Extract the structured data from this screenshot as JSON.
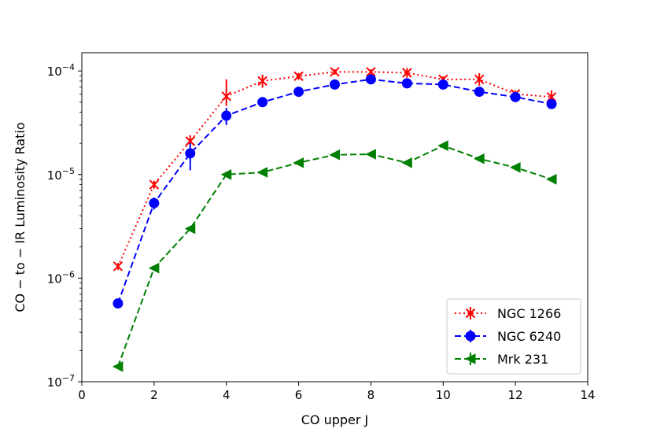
{
  "chart_data": {
    "type": "line",
    "title": "",
    "xlabel": "CO upper J",
    "ylabel": "CO − to − IR Luminosity Ratio",
    "xlim": [
      0,
      14
    ],
    "ylim": [
      1e-07,
      0.00015
    ],
    "yscale": "log",
    "x_ticks": [
      "0",
      "2",
      "4",
      "6",
      "8",
      "10",
      "12",
      "14"
    ],
    "y_ticks": [
      {
        "base": "10",
        "exp": "−7"
      },
      {
        "base": "10",
        "exp": "−6"
      },
      {
        "base": "10",
        "exp": "−5"
      },
      {
        "base": "10",
        "exp": "−4"
      }
    ],
    "grid": false,
    "legend_position": "lower-right",
    "series": [
      {
        "name": "NGC 1266",
        "color": "#ff0000",
        "marker": "x",
        "linestyle": "dotted",
        "x": [
          1,
          2,
          3,
          4,
          5,
          6,
          7,
          8,
          9,
          10,
          11,
          12,
          13
        ],
        "y": [
          1.3e-06,
          8e-06,
          2.1e-05,
          5.7e-05,
          8e-05,
          8.9e-05,
          9.8e-05,
          9.8e-05,
          9.6e-05,
          8.3e-05,
          8.3e-05,
          6e-05,
          5.6e-05
        ],
        "yerr_lo": [
          1.2e-06,
          7.3e-06,
          1.85e-05,
          4.6e-05,
          6.9e-05,
          8.2e-05,
          9.2e-05,
          9.2e-05,
          8.6e-05,
          7.7e-05,
          7.2e-05,
          5.5e-05,
          4.8e-05
        ],
        "yerr_hi": [
          1.4e-06,
          8.7e-06,
          2.4e-05,
          8.3e-05,
          9.2e-05,
          9.6e-05,
          0.000104,
          0.000104,
          0.000107,
          8.9e-05,
          9.5e-05,
          6.5e-05,
          6.5e-05
        ]
      },
      {
        "name": "NGC 6240",
        "color": "#0000ff",
        "marker": "o",
        "linestyle": "dashed",
        "x": [
          1,
          2,
          3,
          4,
          5,
          6,
          7,
          8,
          9,
          10,
          11,
          12,
          13
        ],
        "y": [
          5.7e-07,
          5.3e-06,
          1.6e-05,
          3.7e-05,
          5e-05,
          6.3e-05,
          7.4e-05,
          8.3e-05,
          7.6e-05,
          7.4e-05,
          6.3e-05,
          5.6e-05,
          4.8e-05
        ],
        "yerr_lo": [
          5.3e-07,
          4.6e-06,
          1.1e-05,
          3e-05,
          4.7e-05,
          6e-05,
          7e-05,
          7.9e-05,
          7.2e-05,
          7e-05,
          5.9e-05,
          5.2e-05,
          4.4e-05
        ],
        "yerr_hi": [
          6.1e-07,
          6e-06,
          2e-05,
          4.4e-05,
          5.3e-05,
          6.6e-05,
          7.8e-05,
          8.8e-05,
          8e-05,
          7.8e-05,
          6.7e-05,
          6e-05,
          5.2e-05
        ]
      },
      {
        "name": "Mrk 231",
        "color": "#008000",
        "marker": "<",
        "linestyle": "dashed",
        "x": [
          1,
          2,
          3,
          4,
          5,
          6,
          7,
          8,
          9,
          10,
          11,
          12,
          13
        ],
        "y": [
          1.4e-07,
          1.25e-06,
          3e-06,
          1e-05,
          1.05e-05,
          1.3e-05,
          1.55e-05,
          1.57e-05,
          1.3e-05,
          1.9e-05,
          1.42e-05,
          1.17e-05,
          9e-06
        ],
        "yerr_lo": [
          1.35e-07,
          1.2e-06,
          2.9e-06,
          9.7e-06,
          1.02e-05,
          1.27e-05,
          1.52e-05,
          1.54e-05,
          1.27e-05,
          1.86e-05,
          1.39e-05,
          1.14e-05,
          8.8e-06
        ],
        "yerr_hi": [
          1.45e-07,
          1.3e-06,
          3.1e-06,
          1.03e-05,
          1.08e-05,
          1.33e-05,
          1.58e-05,
          1.6e-05,
          1.33e-05,
          1.94e-05,
          1.45e-05,
          1.2e-05,
          9.2e-06
        ]
      }
    ]
  }
}
